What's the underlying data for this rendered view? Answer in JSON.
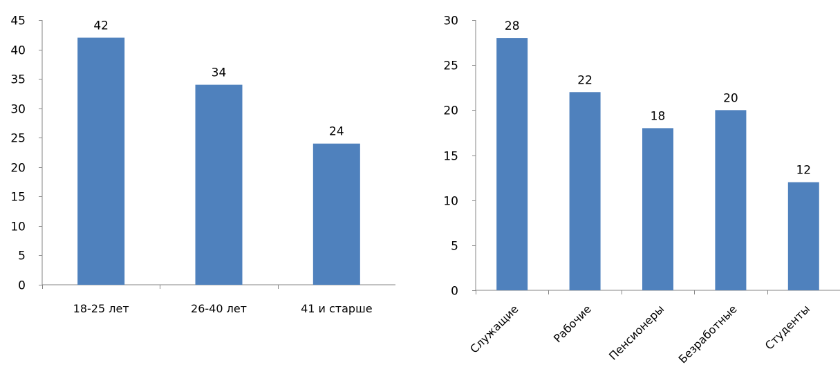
{
  "chart_data": [
    {
      "type": "bar",
      "categories": [
        "18-25 лет",
        "26-40 лет",
        "41 и старше"
      ],
      "values": [
        42,
        34,
        24
      ],
      "ylim": [
        0,
        45
      ],
      "yticks": [
        0,
        5,
        10,
        15,
        20,
        25,
        30,
        35,
        40,
        45
      ],
      "bar_color": "#4F81BD",
      "data_labels": true,
      "grid": false,
      "category_label_rotation": 0
    },
    {
      "type": "bar",
      "categories": [
        "Служащие",
        "Рабочие",
        "Пенсионеры",
        "Безработные",
        "Студенты"
      ],
      "values": [
        28,
        22,
        18,
        20,
        12
      ],
      "ylim": [
        0,
        30
      ],
      "yticks": [
        0,
        5,
        10,
        15,
        20,
        25,
        30
      ],
      "bar_color": "#4F81BD",
      "data_labels": true,
      "grid": false,
      "category_label_rotation": -45
    }
  ]
}
